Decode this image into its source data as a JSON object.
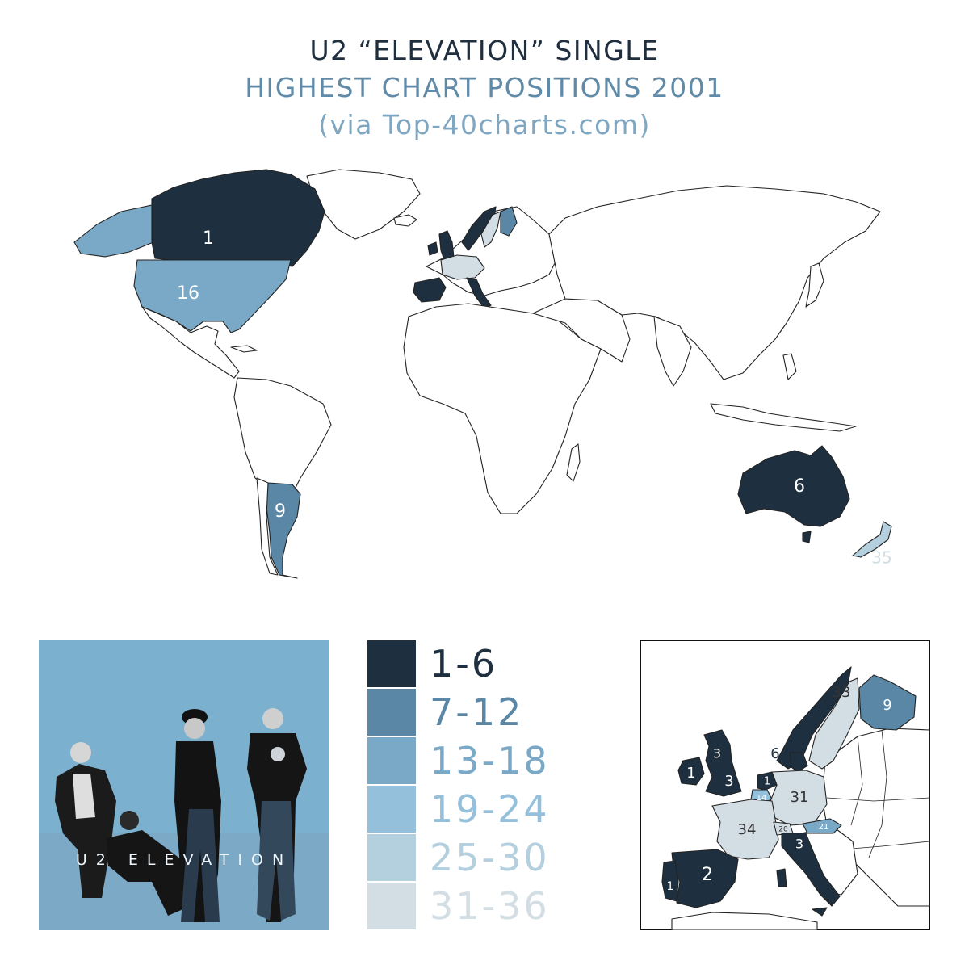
{
  "title": {
    "line1": "U2 “ELEVATION” SINGLE",
    "line2": "HIGHEST CHART POSITIONS 2001",
    "line3": "(via Top-40charts.com)"
  },
  "colors": {
    "bin_1_6": "#1e3040",
    "bin_7_12": "#5a87a5",
    "bin_13_18": "#7aa9c8",
    "bin_19_24": "#94c0dc",
    "bin_25_30": "#b4d0df",
    "bin_31_36": "#d2dde4",
    "no_data": "#ffffff"
  },
  "legend": [
    {
      "label": "1-6",
      "color": "#1e3040"
    },
    {
      "label": "7-12",
      "color": "#5a87a5"
    },
    {
      "label": "13-18",
      "color": "#7aa9c8"
    },
    {
      "label": "19-24",
      "color": "#94c0dc"
    },
    {
      "label": "25-30",
      "color": "#b4d0df"
    },
    {
      "label": "31-36",
      "color": "#d2dde4"
    }
  ],
  "world_positions": {
    "canada": "1",
    "usa": "16",
    "argentina": "9",
    "australia": "6",
    "new_zealand": "35"
  },
  "cover": {
    "text": "U2 ELEVATION"
  },
  "europe_positions": {
    "norway": "5",
    "sweden": "33",
    "finland": "9",
    "denmark": "6",
    "scotland": "3",
    "ireland": "1",
    "uk": "3",
    "netherlands": "1",
    "belgium": "14",
    "germany": "31",
    "france": "34",
    "switzerland": "20",
    "austria": "21",
    "italy": "3",
    "spain": "2",
    "portugal": "1"
  }
}
